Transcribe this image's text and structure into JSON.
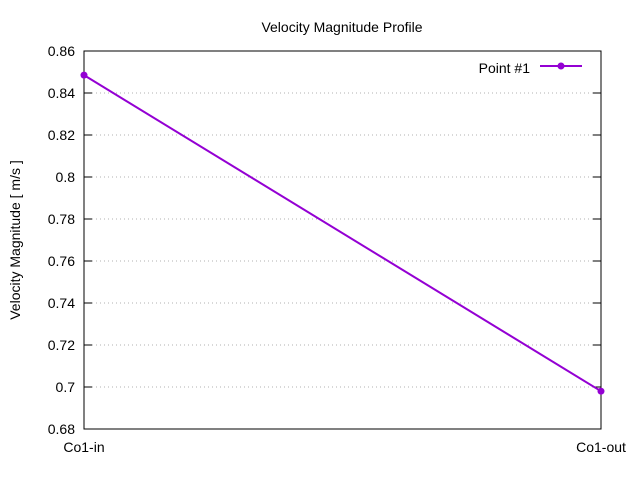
{
  "chart_data": {
    "type": "line",
    "title": "Velocity Magnitude Profile",
    "xlabel": "",
    "ylabel": "Velocity Magnitude [ m/s ]",
    "categories": [
      "Co1-in",
      "Co1-out"
    ],
    "series": [
      {
        "name": "Point #1",
        "values": [
          0.8485,
          0.698
        ],
        "color": "#9400d3"
      }
    ],
    "ylim": [
      0.68,
      0.86
    ],
    "yticks": [
      "0.68",
      "0.7",
      "0.72",
      "0.74",
      "0.76",
      "0.78",
      "0.8",
      "0.82",
      "0.84",
      "0.86"
    ],
    "grid": true,
    "legend_position": "top-right"
  }
}
